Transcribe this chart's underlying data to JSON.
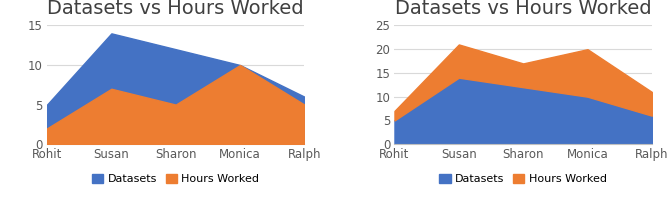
{
  "title": "Datasets vs Hours Worked",
  "categories": [
    "Rohit",
    "Susan",
    "Sharon",
    "Monica",
    "Ralph"
  ],
  "datasets": [
    5,
    14,
    12,
    10,
    6
  ],
  "hours_worked": [
    2,
    7,
    5,
    10,
    5
  ],
  "color_datasets": "#4472C4",
  "color_hours": "#ED7D31",
  "legend_labels": [
    "Datasets",
    "Hours Worked"
  ],
  "left_ylim": [
    0,
    15
  ],
  "right_ylim": [
    0,
    25
  ],
  "left_yticks": [
    0,
    5,
    10,
    15
  ],
  "right_yticks": [
    0,
    5,
    10,
    15,
    20,
    25
  ],
  "background_color": "#ffffff",
  "grid_color": "#d9d9d9",
  "title_fontsize": 14,
  "tick_fontsize": 8.5
}
